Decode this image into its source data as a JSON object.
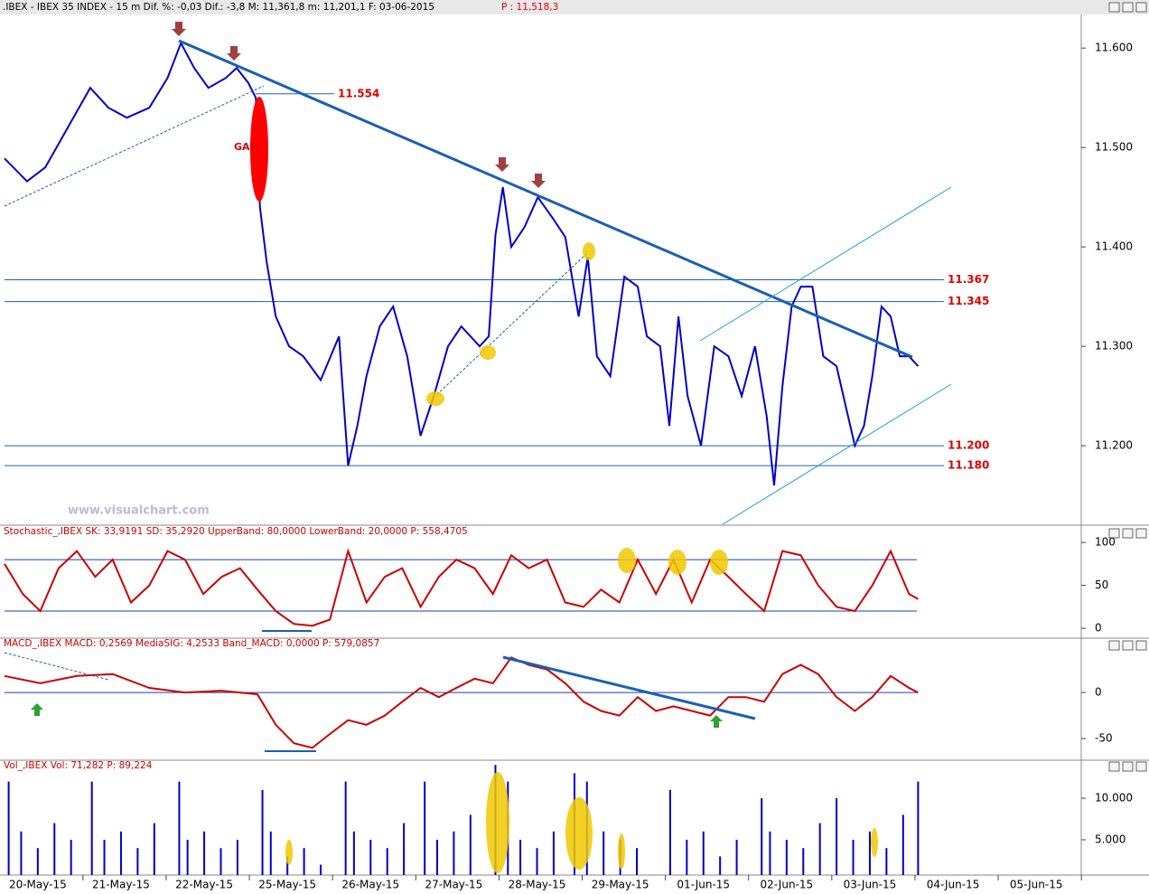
{
  "header": {
    "text": ".IBEX - IBEX 35 INDEX -  15 m Dif. %: -0,03 Dif.: -3,8 M: 11,361,8 m: 11,201,1 F: 03-06-2015",
    "price": "P : 11,518,3"
  },
  "watermark": "www.visualchart.com",
  "gap_label": "GAP",
  "chart_data": [
    {
      "type": "line",
      "color": "#0000cc",
      "x": [
        0.0,
        0.27,
        0.49,
        0.76,
        1.03,
        1.25,
        1.47,
        1.74,
        1.96,
        2.12,
        2.28,
        2.45,
        2.66,
        2.79,
        2.93,
        3.02,
        3.07,
        3.15,
        3.26,
        3.42,
        3.59,
        3.8,
        4.02,
        4.13,
        4.24,
        4.35,
        4.51,
        4.67,
        4.84,
        5.0,
        5.16,
        5.33,
        5.49,
        5.71,
        5.82,
        5.9,
        5.99,
        6.09,
        6.25,
        6.41,
        6.58,
        6.74,
        6.9,
        7.01,
        7.12,
        7.28,
        7.45,
        7.61,
        7.72,
        7.88,
        7.99,
        8.1,
        8.21,
        8.37,
        8.53,
        8.7,
        8.86,
        9.02,
        9.16,
        9.25,
        9.35,
        9.46,
        9.57,
        9.71,
        9.84,
        10.0,
        10.11,
        10.22,
        10.33,
        10.43,
        10.54,
        10.65,
        10.76,
        10.87,
        10.98
      ],
      "values": [
        11489,
        11466,
        11480,
        11520,
        11560,
        11540,
        11530,
        11540,
        11570,
        11605,
        11580,
        11560,
        11570,
        11580,
        11565,
        11550,
        11440,
        11385,
        11330,
        11300,
        11290,
        11266,
        11310,
        11180,
        11220,
        11270,
        11320,
        11340,
        11290,
        11210,
        11250,
        11300,
        11320,
        11300,
        11310,
        11412,
        11460,
        11400,
        11420,
        11450,
        11430,
        11410,
        11330,
        11390,
        11290,
        11270,
        11370,
        11360,
        11310,
        11300,
        11220,
        11330,
        11250,
        11200,
        11300,
        11290,
        11250,
        11300,
        11230,
        11160,
        11260,
        11340,
        11360,
        11360,
        11290,
        11280,
        11240,
        11200,
        11220,
        11270,
        11340,
        11330,
        11290,
        11290,
        11280
      ],
      "xlim": [
        0,
        12.93
      ],
      "ylim": [
        11121,
        11632
      ],
      "yticks": [
        {
          "value": 11600,
          "label": "11.600"
        },
        {
          "value": 11500,
          "label": "11.500"
        },
        {
          "value": 11400,
          "label": "11.400"
        },
        {
          "value": 11300,
          "label": "11.300"
        },
        {
          "value": 11200,
          "label": "11.200"
        }
      ],
      "levels": [
        {
          "value": 11554,
          "label": "11.554"
        },
        {
          "value": 11367,
          "label": "11.367"
        },
        {
          "value": 11345,
          "label": "11.345"
        },
        {
          "value": 11200,
          "label": "11.200"
        },
        {
          "value": 11180,
          "label": "11.180"
        }
      ]
    },
    {
      "type": "line",
      "color": "#cc0000",
      "title": "Stochastic_,IBEX SK: 33,9191 SD: 35,2920 UpperBand: 80,0000 LowerBand: 20,0000 P: 558,4705",
      "x": [
        0,
        0.22,
        0.43,
        0.65,
        0.87,
        1.09,
        1.3,
        1.52,
        1.74,
        1.96,
        2.17,
        2.39,
        2.61,
        2.83,
        3.04,
        3.26,
        3.48,
        3.7,
        3.91,
        4.13,
        4.35,
        4.57,
        4.78,
        5.0,
        5.22,
        5.43,
        5.65,
        5.87,
        6.09,
        6.3,
        6.52,
        6.74,
        6.96,
        7.17,
        7.39,
        7.61,
        7.83,
        8.04,
        8.26,
        8.48,
        8.7,
        8.91,
        9.13,
        9.35,
        9.57,
        9.78,
        10.0,
        10.22,
        10.43,
        10.65,
        10.87,
        10.98
      ],
      "values": [
        75,
        40,
        20,
        70,
        90,
        60,
        80,
        30,
        50,
        90,
        80,
        40,
        60,
        70,
        45,
        20,
        5,
        3,
        10,
        90,
        30,
        60,
        70,
        25,
        60,
        80,
        70,
        40,
        85,
        70,
        80,
        30,
        25,
        45,
        30,
        80,
        40,
        80,
        30,
        80,
        60,
        40,
        20,
        90,
        85,
        50,
        25,
        20,
        50,
        90,
        40,
        34
      ],
      "xlim": [
        0,
        12.93
      ],
      "ylim": [
        -10.5,
        118
      ],
      "yticks": [
        100,
        50,
        0
      ],
      "bands": [
        80,
        20
      ]
    },
    {
      "type": "line",
      "color": "#cc0000",
      "title": "MACD_,IBEX MACD: 0,2569 MediaSIG: 4,2533 Band_MACD: 0,0000 P: 579,0857",
      "x": [
        0,
        0.43,
        0.87,
        1.3,
        1.74,
        2.17,
        2.61,
        3.04,
        3.26,
        3.48,
        3.7,
        3.91,
        4.13,
        4.35,
        4.57,
        4.78,
        5.0,
        5.22,
        5.43,
        5.65,
        5.87,
        6.09,
        6.3,
        6.52,
        6.74,
        6.96,
        7.17,
        7.39,
        7.61,
        7.83,
        8.04,
        8.26,
        8.48,
        8.7,
        8.91,
        9.13,
        9.35,
        9.57,
        9.78,
        10.0,
        10.22,
        10.43,
        10.65,
        10.87,
        10.98
      ],
      "values": [
        18,
        10,
        18,
        20,
        5,
        0,
        2,
        -2,
        -35,
        -55,
        -60,
        -45,
        -30,
        -35,
        -25,
        -10,
        5,
        -5,
        5,
        15,
        10,
        38,
        30,
        25,
        10,
        -10,
        -20,
        -25,
        -5,
        -20,
        -15,
        -20,
        -25,
        -5,
        -5,
        -10,
        20,
        30,
        20,
        -5,
        -20,
        -5,
        18,
        5,
        0
      ],
      "xlim": [
        0,
        12.93
      ],
      "ylim": [
        -72.5,
        58
      ],
      "yticks": [
        0,
        -50
      ],
      "bands": [
        0
      ]
    },
    {
      "type": "bar",
      "color": "#0000cc",
      "title": "Vol_,IBEX Vol: 71,282 P: 89,224",
      "x": [
        0.05,
        0.2,
        0.4,
        0.6,
        0.8,
        1.05,
        1.2,
        1.4,
        1.6,
        1.8,
        2.1,
        2.2,
        2.4,
        2.6,
        2.8,
        3.1,
        3.2,
        3.4,
        3.6,
        3.8,
        4.1,
        4.2,
        4.4,
        4.6,
        4.8,
        5.05,
        5.2,
        5.4,
        5.6,
        5.9,
        6.05,
        6.2,
        6.4,
        6.6,
        6.85,
        7.0,
        7.2,
        7.4,
        7.6,
        8.0,
        8.2,
        8.4,
        8.6,
        8.8,
        9.1,
        9.2,
        9.4,
        9.6,
        9.8,
        10.0,
        10.2,
        10.4,
        10.6,
        10.8,
        10.98
      ],
      "values": [
        12000,
        6000,
        4000,
        7000,
        5000,
        12000,
        5000,
        6000,
        4000,
        7000,
        12000,
        5000,
        6000,
        4000,
        5000,
        11000,
        6000,
        3000,
        4000,
        2000,
        12000,
        6000,
        5000,
        4000,
        7000,
        12000,
        5000,
        6000,
        8000,
        14000,
        12000,
        5000,
        4000,
        6000,
        13000,
        12000,
        6000,
        5000,
        4000,
        11000,
        5000,
        6000,
        3000,
        5000,
        10000,
        6000,
        5000,
        4000,
        7000,
        10000,
        5000,
        6000,
        4000,
        8000,
        12000
      ],
      "xlim": [
        0,
        12.93
      ],
      "ylim": [
        760,
        14460
      ],
      "yticks": [
        {
          "value": 10000,
          "label": "10.000"
        },
        {
          "value": 5000,
          "label": "5.000"
        }
      ],
      "xticks": [
        {
          "value": 0.4,
          "label": "20-May-15"
        },
        {
          "value": 1.4,
          "label": "21-May-15"
        },
        {
          "value": 2.4,
          "label": "22-May-15"
        },
        {
          "value": 3.4,
          "label": "25-May-15"
        },
        {
          "value": 4.4,
          "label": "26-May-15"
        },
        {
          "value": 5.4,
          "label": "27-May-15"
        },
        {
          "value": 6.4,
          "label": "28-May-15"
        },
        {
          "value": 7.4,
          "label": "29-May-15"
        },
        {
          "value": 8.4,
          "label": "01-Jun-15"
        },
        {
          "value": 9.4,
          "label": "02-Jun-15"
        },
        {
          "value": 10.4,
          "label": "03-Jun-15"
        },
        {
          "value": 11.4,
          "label": "04-Jun-15"
        },
        {
          "value": 12.4,
          "label": "05-Jun-15"
        }
      ]
    }
  ]
}
